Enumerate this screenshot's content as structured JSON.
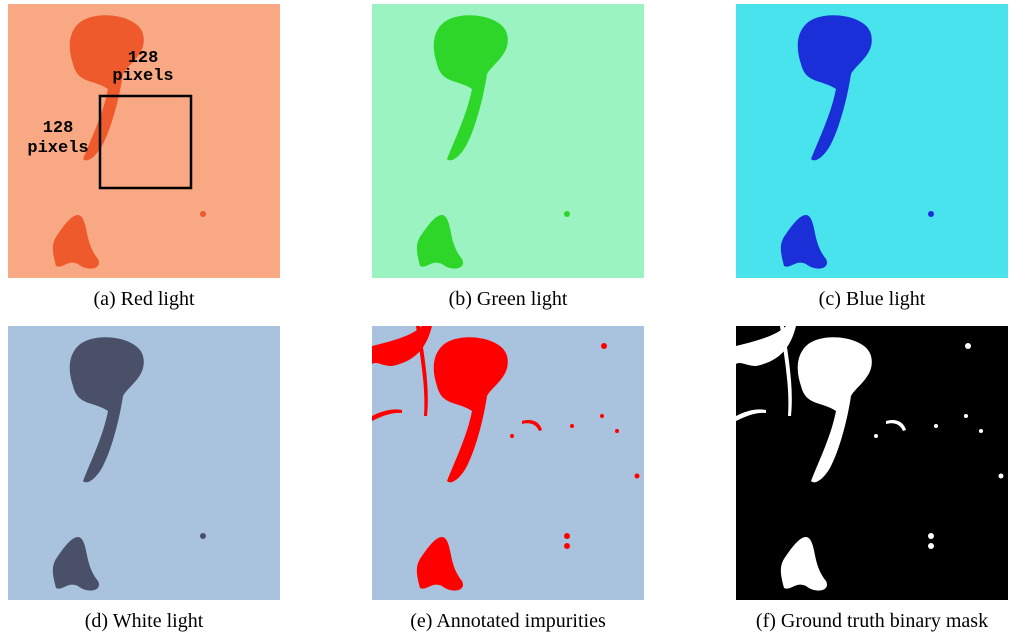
{
  "panels": [
    {
      "caption": "(a) Red light",
      "annotations": {
        "top": [
          "128",
          "pixels"
        ],
        "left": [
          "128",
          "pixels"
        ]
      }
    },
    {
      "caption": "(b) Green light"
    },
    {
      "caption": "(c) Blue light"
    },
    {
      "caption": "(d) White light"
    },
    {
      "caption": "(e) Annotated impurities"
    },
    {
      "caption": "(f) Ground truth binary mask"
    }
  ]
}
